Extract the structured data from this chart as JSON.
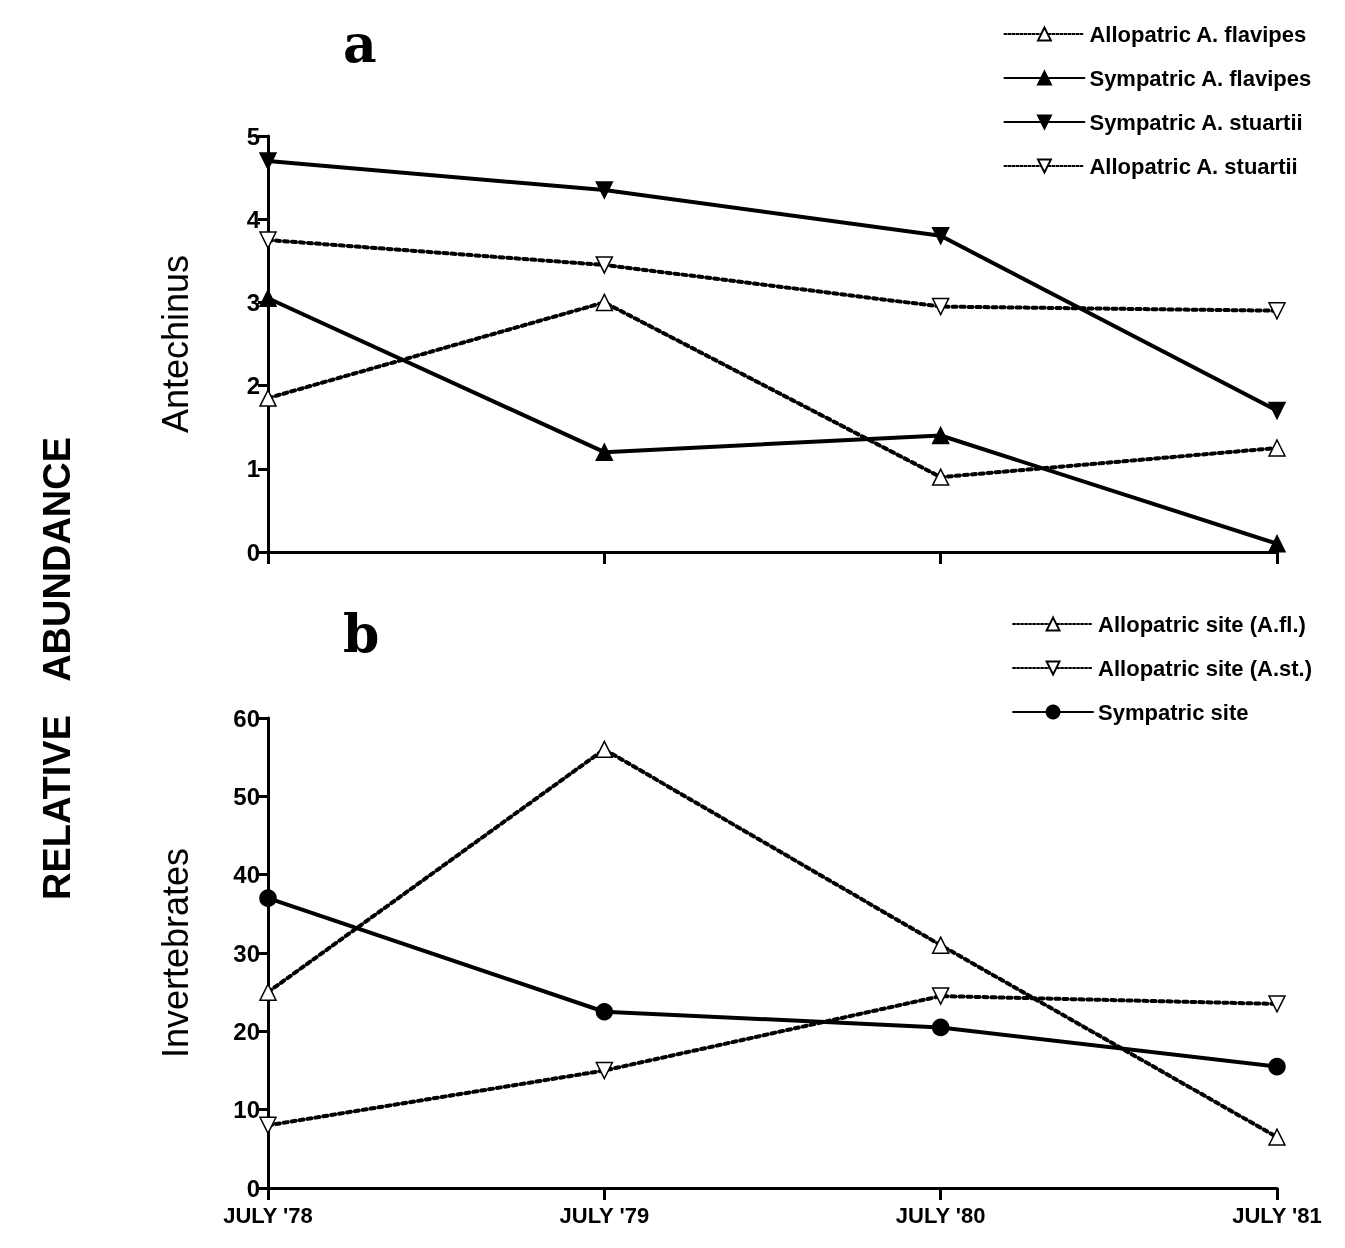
{
  "chart_data": [
    {
      "type": "line",
      "title": "a",
      "ylabel": "Antechinus",
      "annotations": [
        "RELATIVE ABUNDANCE"
      ],
      "categories": [
        null,
        null,
        null,
        null
      ],
      "series": [
        {
          "name": "Allopatric A. flavipes",
          "color": "#000000",
          "marker": "triangle",
          "line_style": "dotted",
          "values": [
            1.85,
            3.0,
            0.9,
            1.25
          ]
        },
        {
          "name": "Sympatric A. flavipes",
          "color": "#000000",
          "marker": "triangle",
          "line_style": "solid",
          "values": [
            3.05,
            1.2,
            1.4,
            0.1
          ]
        },
        {
          "name": "Sympatric A. stuartii",
          "color": "#000000",
          "marker": "triangle-down",
          "line_style": "solid",
          "values": [
            4.7,
            4.35,
            3.8,
            1.7
          ]
        },
        {
          "name": "Allopatric A. stuartii",
          "color": "#000000",
          "marker": "triangle-down",
          "line_style": "dotted",
          "values": [
            3.75,
            3.45,
            2.95,
            2.9
          ]
        }
      ],
      "ylim": [
        0,
        5
      ],
      "yticks": [
        0,
        1,
        2,
        3,
        4,
        5
      ],
      "grid": false,
      "legend": "top right",
      "tick_labels": "y"
    },
    {
      "type": "line",
      "title": "b",
      "ylabel": "Invertebrates",
      "categories": [
        "JULY '78",
        "JULY '79",
        "JULY '80",
        "JULY '81"
      ],
      "series": [
        {
          "name": "Allopatric site (A.fl.)",
          "color": "#000000",
          "marker": "triangle",
          "line_style": "dotted",
          "values": [
            25,
            56,
            31,
            6.5
          ]
        },
        {
          "name": "Allopatric site (A.st.)",
          "color": "#000000",
          "marker": "triangle-down",
          "line_style": "dotted",
          "values": [
            8,
            15,
            24.5,
            23.5
          ]
        },
        {
          "name": "Sympatric site",
          "color": "#000000",
          "marker": "circle",
          "line_style": "solid",
          "values": [
            37,
            22.5,
            20.5,
            15.5
          ]
        }
      ],
      "ylim": [
        0,
        60
      ],
      "yticks": [
        0,
        10,
        20,
        30,
        40,
        50,
        60
      ],
      "grid": false,
      "legend": "top right"
    }
  ]
}
